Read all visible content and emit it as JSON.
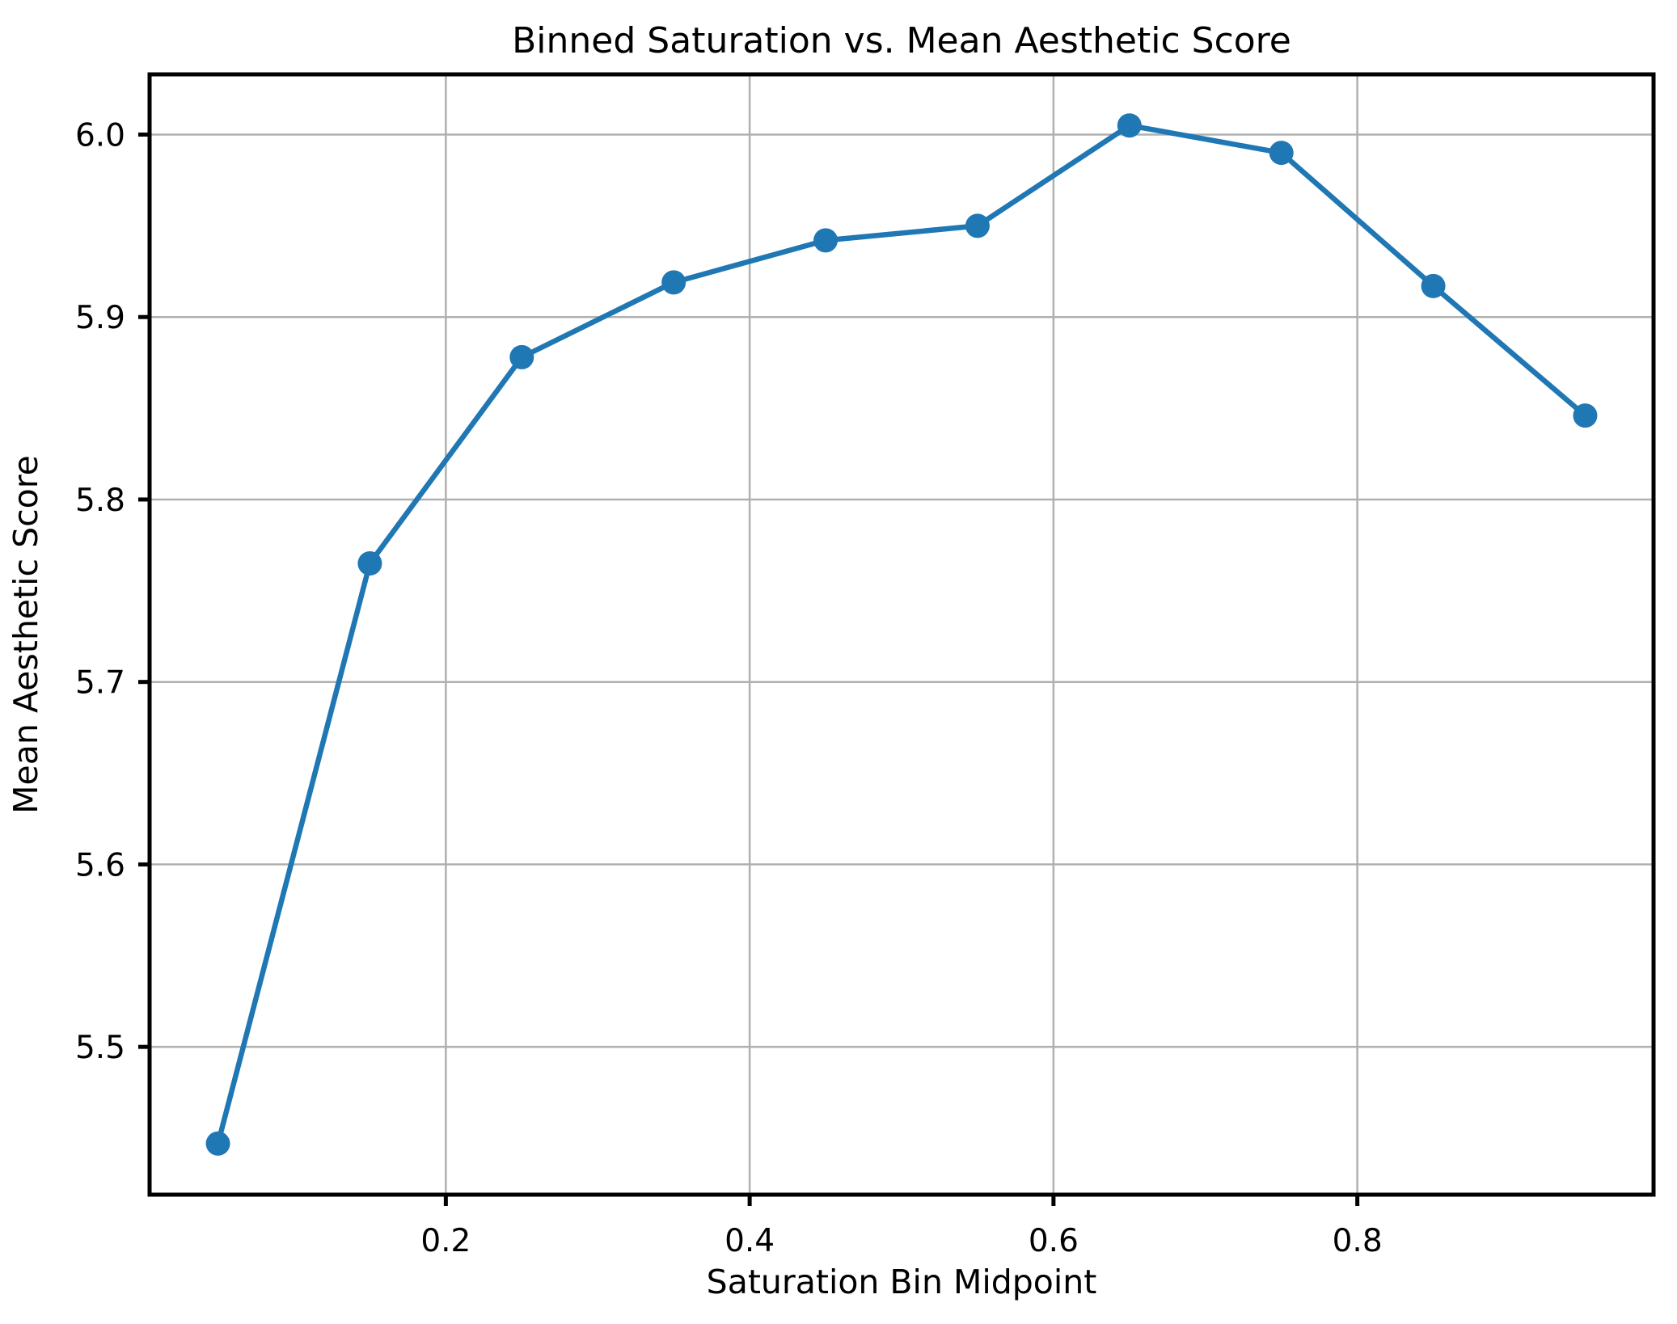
{
  "figure": {
    "background": "#ffffff"
  },
  "chart_data": {
    "type": "line",
    "title": "Binned Saturation vs. Mean Aesthetic Score",
    "xlabel": "Saturation Bin Midpoint",
    "ylabel": "Mean Aesthetic Score",
    "series": [
      {
        "name": "Mean Aesthetic Score",
        "x": [
          0.05,
          0.15,
          0.25,
          0.35,
          0.45,
          0.55,
          0.65,
          0.75,
          0.85,
          0.95
        ],
        "y": [
          5.447,
          5.765,
          5.878,
          5.919,
          5.942,
          5.95,
          6.005,
          5.99,
          5.917,
          5.846
        ],
        "color": "#1f77b4",
        "marker": "circle"
      }
    ],
    "xlim": [
      0.005,
      0.995
    ],
    "ylim": [
      5.419,
      6.033
    ],
    "xticks": [
      0.2,
      0.4,
      0.6,
      0.8
    ],
    "xtick_labels": [
      "0.2",
      "0.4",
      "0.6",
      "0.8"
    ],
    "yticks": [
      5.5,
      5.6,
      5.7,
      5.8,
      5.9,
      6.0
    ],
    "ytick_labels": [
      "5.5",
      "5.6",
      "5.7",
      "5.8",
      "5.9",
      "6.0"
    ],
    "grid": true,
    "legend": false,
    "grid_color": "#b0b0b0",
    "spine_color": "#000000",
    "text_color": "#000000"
  }
}
